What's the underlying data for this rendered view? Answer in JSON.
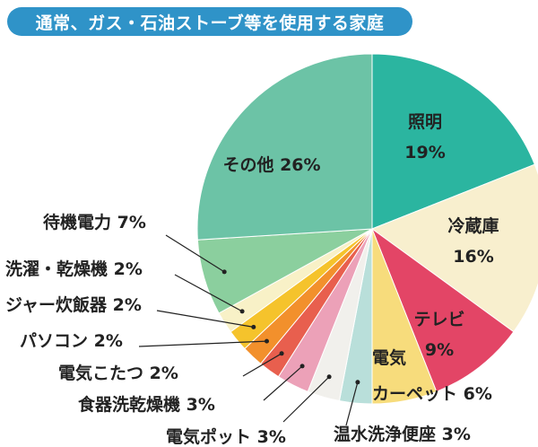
{
  "title": "通常、ガス・石油ストーブ等を使用する家庭",
  "colors": {
    "title_bg": "#2f93c8",
    "title_text": "#ffffff",
    "leader": "#222222"
  },
  "chart_data": {
    "type": "pie",
    "unit": "%",
    "start_angle_deg": 0,
    "direction": "clockwise",
    "slices": [
      {
        "label": "照明",
        "value": 19,
        "color": "#2bb5a0"
      },
      {
        "label": "冷蔵庫",
        "value": 16,
        "color": "#f8efce"
      },
      {
        "label": "テレビ",
        "value": 9,
        "color": "#e34566"
      },
      {
        "label": "電気カーペット",
        "value": 6,
        "color": "#f7dc7c"
      },
      {
        "label": "温水洗浄便座",
        "value": 3,
        "color": "#b9dfda"
      },
      {
        "label": "電気ポット",
        "value": 3,
        "color": "#f1f0ec"
      },
      {
        "label": "食器洗乾燥機",
        "value": 3,
        "color": "#eca1b8"
      },
      {
        "label": "電気こたつ",
        "value": 2,
        "color": "#e85f4e"
      },
      {
        "label": "パソコン",
        "value": 2,
        "color": "#f2902c"
      },
      {
        "label": "ジャー炊飯器",
        "value": 2,
        "color": "#f5c32c"
      },
      {
        "label": "洗濯・乾燥機",
        "value": 2,
        "color": "#f8f1c7"
      },
      {
        "label": "待機電力",
        "value": 7,
        "color": "#8bcf9e"
      },
      {
        "label": "その他",
        "value": 26,
        "color": "#6cc3a6"
      }
    ]
  }
}
